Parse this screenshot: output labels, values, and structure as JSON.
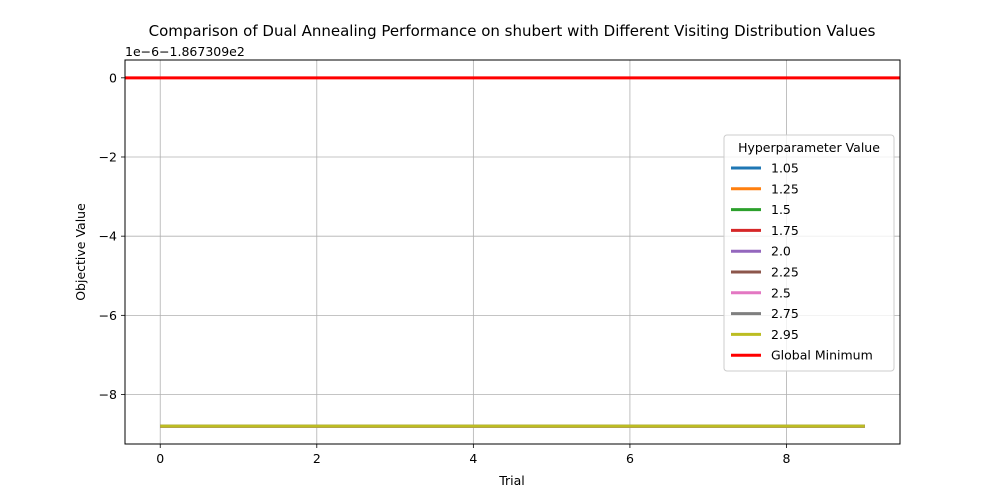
{
  "chart_data": {
    "type": "line",
    "title": "Comparison of Dual Annealing Performance on shubert with Different Visiting Distribution Values",
    "xlabel": "Trial",
    "ylabel": "Objective Value",
    "y_offset_text": "1e−6−1.867309e2",
    "x": [
      0,
      1,
      2,
      3,
      4,
      5,
      6,
      7,
      8,
      9
    ],
    "xlim": [
      -0.45,
      9.45
    ],
    "ylim": [
      -9.25,
      0.45
    ],
    "x_ticks": [
      0,
      2,
      4,
      6,
      8
    ],
    "x_tick_labels": [
      "0",
      "2",
      "4",
      "6",
      "8"
    ],
    "y_ticks": [
      0,
      -2,
      -4,
      -6,
      -8
    ],
    "y_tick_labels": [
      "0",
      "−2",
      "−4",
      "−6",
      "−8"
    ],
    "grid": true,
    "legend": {
      "title": "Hyperparameter Value",
      "placement": "center-right"
    },
    "series": [
      {
        "name": "1.05",
        "color": "#1f77b4",
        "values": [
          -8.8,
          -8.8,
          -8.8,
          -8.8,
          -8.8,
          -8.8,
          -8.8,
          -8.8,
          -8.8,
          -8.8
        ]
      },
      {
        "name": "1.25",
        "color": "#ff7f0e",
        "values": [
          -8.8,
          -8.8,
          -8.8,
          -8.8,
          -8.8,
          -8.8,
          -8.8,
          -8.8,
          -8.8,
          -8.8
        ]
      },
      {
        "name": "1.5",
        "color": "#2ca02c",
        "values": [
          -8.8,
          -8.8,
          -8.8,
          -8.8,
          -8.8,
          -8.8,
          -8.8,
          -8.8,
          -8.8,
          -8.8
        ]
      },
      {
        "name": "1.75",
        "color": "#d62728",
        "values": [
          -8.8,
          -8.8,
          -8.8,
          -8.8,
          -8.8,
          -8.8,
          -8.8,
          -8.8,
          -8.8,
          -8.8
        ]
      },
      {
        "name": "2.0",
        "color": "#9467bd",
        "values": [
          -8.8,
          -8.8,
          -8.8,
          -8.8,
          -8.8,
          -8.8,
          -8.8,
          -8.8,
          -8.8,
          -8.8
        ]
      },
      {
        "name": "2.25",
        "color": "#8c564b",
        "values": [
          -8.8,
          -8.8,
          -8.8,
          -8.8,
          -8.8,
          -8.8,
          -8.8,
          -8.8,
          -8.8,
          -8.8
        ]
      },
      {
        "name": "2.5",
        "color": "#e377c2",
        "values": [
          -8.8,
          -8.8,
          -8.8,
          -8.8,
          -8.8,
          -8.8,
          -8.8,
          -8.8,
          -8.8,
          -8.8
        ]
      },
      {
        "name": "2.75",
        "color": "#7f7f7f",
        "values": [
          -8.8,
          -8.8,
          -8.8,
          -8.8,
          -8.8,
          -8.8,
          -8.8,
          -8.8,
          -8.8,
          -8.8
        ]
      },
      {
        "name": "2.95",
        "color": "#bcbd22",
        "values": [
          -8.8,
          -8.8,
          -8.8,
          -8.8,
          -8.8,
          -8.8,
          -8.8,
          -8.8,
          -8.8,
          -8.8
        ]
      }
    ],
    "reference_line": {
      "name": "Global Minimum",
      "color": "#ff0000",
      "y": 0
    }
  }
}
